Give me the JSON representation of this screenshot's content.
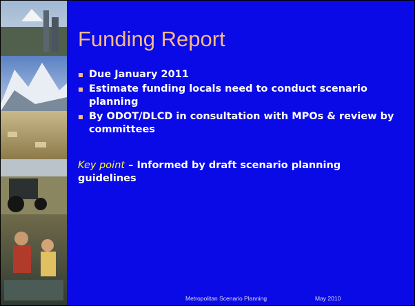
{
  "slide": {
    "title": "Funding Report",
    "bullets": [
      "Due January 2011",
      "Estimate funding locals need to conduct scenario planning",
      "By ODOT/DLCD in consultation with MPOs & review by committees"
    ],
    "key_point": {
      "label": "Key point",
      "text": " – Informed by draft scenario planning guidelines"
    },
    "footer": {
      "center": "Metropolitan Scenario Planning",
      "date": "May 2010"
    }
  }
}
